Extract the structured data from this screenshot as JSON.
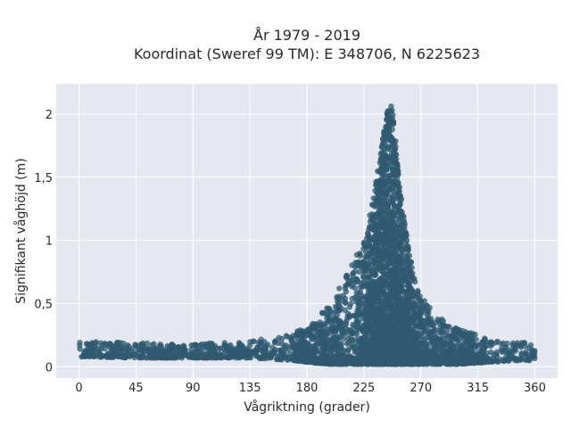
{
  "chart_data": {
    "type": "scatter",
    "title_line1": "År 1979 - 2019",
    "title_line2": "Koordinat (Sweref 99 TM): E 348706, N 6225623",
    "xlabel": "Vågriktning (grader)",
    "ylabel": "Signifikant våghöjd (m)",
    "xlim": [
      -18,
      378
    ],
    "ylim": [
      -0.09,
      2.24
    ],
    "x_ticks": [
      0,
      45,
      90,
      135,
      180,
      225,
      270,
      315,
      360
    ],
    "x_tick_labels": [
      "0",
      "45",
      "90",
      "135",
      "180",
      "225",
      "270",
      "315",
      "360"
    ],
    "y_ticks": [
      0,
      0.5,
      1,
      1.5,
      2
    ],
    "y_tick_labels": [
      "0",
      "0,5",
      "1",
      "1,5",
      "2"
    ],
    "grid": true,
    "marker_color": "#2f5a70",
    "background_color": "#e5e8f0",
    "envelope": {
      "x": [
        0,
        45,
        90,
        135,
        170,
        185,
        200,
        215,
        225,
        232,
        238,
        243,
        246,
        248,
        251,
        255,
        260,
        265,
        270,
        280,
        290,
        300,
        315,
        330,
        345,
        360
      ],
      "upper": [
        0.2,
        0.19,
        0.18,
        0.2,
        0.27,
        0.35,
        0.52,
        0.8,
        1.0,
        1.3,
        1.7,
        2.0,
        2.12,
        2.0,
        1.7,
        1.3,
        0.95,
        0.7,
        0.55,
        0.45,
        0.35,
        0.3,
        0.25,
        0.22,
        0.2,
        0.18
      ],
      "lower": [
        0.08,
        0.07,
        0.07,
        0.07,
        0.05,
        0.03,
        0.02,
        0.02,
        0.02,
        0.02,
        0.02,
        0.02,
        0.02,
        0.02,
        0.02,
        0.02,
        0.02,
        0.02,
        0.02,
        0.02,
        0.02,
        0.02,
        0.03,
        0.04,
        0.05,
        0.05
      ]
    }
  }
}
